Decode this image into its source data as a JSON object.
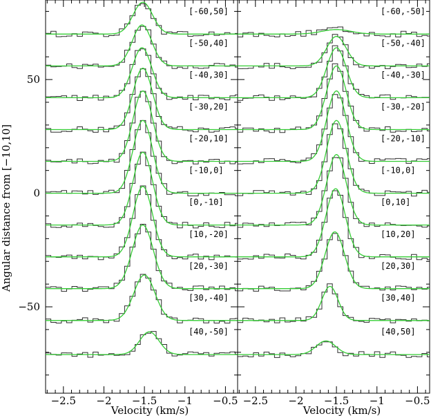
{
  "chart_data": {
    "type": "line",
    "ylabel": "Angular distance from [−10,10]",
    "colors": {
      "observed": "#2b2b2b",
      "fit": "#33cc33",
      "axes": "#000000"
    },
    "y_ticks": [
      50,
      0,
      -50
    ],
    "ylim": [
      -88,
      85
    ],
    "panels": [
      {
        "xlabel": "Velocity (km/s)",
        "xlim": [
          -2.72,
          -0.35
        ],
        "x_ticks": [
          -2.5,
          -2,
          -1.5,
          -1,
          -0.5
        ],
        "x_tick_labels": [
          "−2.5",
          "−2",
          "−1.5",
          "−1",
          "−0.5"
        ],
        "series": [
          {
            "label": "[-60,50]",
            "baseline": 70,
            "center": -1.52,
            "amplitude": 14,
            "sigma": 0.12
          },
          {
            "label": "[-50,40]",
            "baseline": 56,
            "center": -1.53,
            "amplitude": 18,
            "sigma": 0.12
          },
          {
            "label": "[-40,30]",
            "baseline": 42,
            "center": -1.53,
            "amplitude": 22,
            "sigma": 0.12
          },
          {
            "label": "[-30,20]",
            "baseline": 28,
            "center": -1.52,
            "amplitude": 27,
            "sigma": 0.12
          },
          {
            "label": "[-20,10]",
            "baseline": 14,
            "center": -1.52,
            "amplitude": 31,
            "sigma": 0.12
          },
          {
            "label": "[-10,0]",
            "baseline": 0,
            "center": -1.52,
            "amplitude": 32,
            "sigma": 0.12
          },
          {
            "label": "[0,-10]",
            "baseline": -14,
            "center": -1.52,
            "amplitude": 32,
            "sigma": 0.12
          },
          {
            "label": "[10,-20]",
            "baseline": -28,
            "center": -1.52,
            "amplitude": 31,
            "sigma": 0.12
          },
          {
            "label": "[20,-30]",
            "baseline": -42,
            "center": -1.52,
            "amplitude": 28,
            "sigma": 0.13
          },
          {
            "label": "[30,-40]",
            "baseline": -56,
            "center": -1.5,
            "amplitude": 20,
            "sigma": 0.13
          },
          {
            "label": "[40,-50]",
            "baseline": -71,
            "center": -1.44,
            "amplitude": 10,
            "sigma": 0.12
          }
        ]
      },
      {
        "xlabel": "Velocity (km/s)",
        "xlim": [
          -2.72,
          -0.35
        ],
        "x_ticks": [
          -2.5,
          -2,
          -1.5,
          -1,
          -0.5
        ],
        "x_tick_labels": [
          "−2.5",
          "−2",
          "−1.5",
          "−1",
          "−0.5"
        ],
        "series": [
          {
            "label": "[-60,-50]",
            "baseline": 70,
            "center": -1.5,
            "amplitude": 2,
            "sigma": 0.18
          },
          {
            "label": "[-50,-40]",
            "baseline": 56,
            "center": -1.5,
            "amplitude": 13,
            "sigma": 0.12
          },
          {
            "label": "[-40,-30]",
            "baseline": 42,
            "center": -1.5,
            "amplitude": 22,
            "sigma": 0.12
          },
          {
            "label": "[-30,-20]",
            "baseline": 28,
            "center": -1.5,
            "amplitude": 28,
            "sigma": 0.12
          },
          {
            "label": "[-20,-10]",
            "baseline": 14,
            "center": -1.5,
            "amplitude": 31,
            "sigma": 0.12
          },
          {
            "label": "[-10,0]",
            "baseline": 0,
            "center": -1.5,
            "amplitude": 32,
            "sigma": 0.12
          },
          {
            "label": "[0,10]",
            "baseline": -14,
            "center": -1.5,
            "amplitude": 31,
            "sigma": 0.12
          },
          {
            "label": "[10,20]",
            "baseline": -28,
            "center": -1.51,
            "amplitude": 30,
            "sigma": 0.12
          },
          {
            "label": "[20,30]",
            "baseline": -42,
            "center": -1.52,
            "amplitude": 25,
            "sigma": 0.12
          },
          {
            "label": "[30,40]",
            "baseline": -56,
            "center": -1.58,
            "amplitude": 15,
            "sigma": 0.1
          },
          {
            "label": "[40,50]",
            "baseline": -71,
            "center": -1.63,
            "amplitude": 6,
            "sigma": 0.12
          }
        ]
      }
    ]
  }
}
